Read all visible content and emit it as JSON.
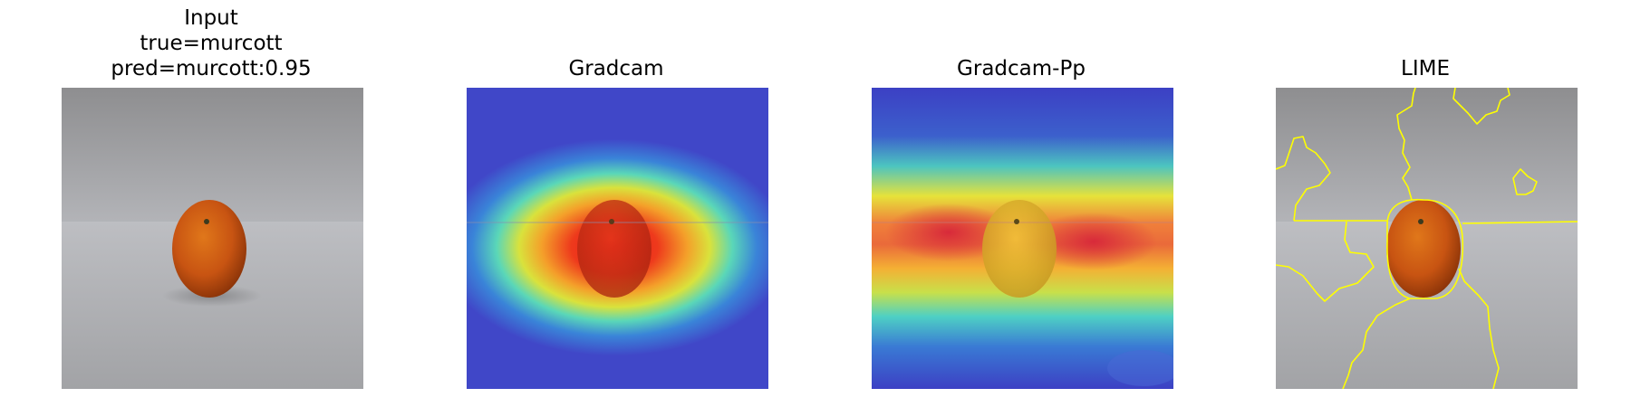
{
  "figure": {
    "panels": [
      {
        "title_lines": [
          "Input",
          "true=murcott",
          "pred=murcott:0.95"
        ],
        "image": "orange-photo"
      },
      {
        "title_lines": [
          "Gradcam"
        ],
        "image": "gradcam-heatmap-overlay"
      },
      {
        "title_lines": [
          "Gradcam-Pp"
        ],
        "image": "gradcam-pp-heatmap-overlay"
      },
      {
        "title_lines": [
          "LIME"
        ],
        "image": "lime-superpixel-boundaries",
        "boundary_color": "#ffff00"
      }
    ]
  }
}
